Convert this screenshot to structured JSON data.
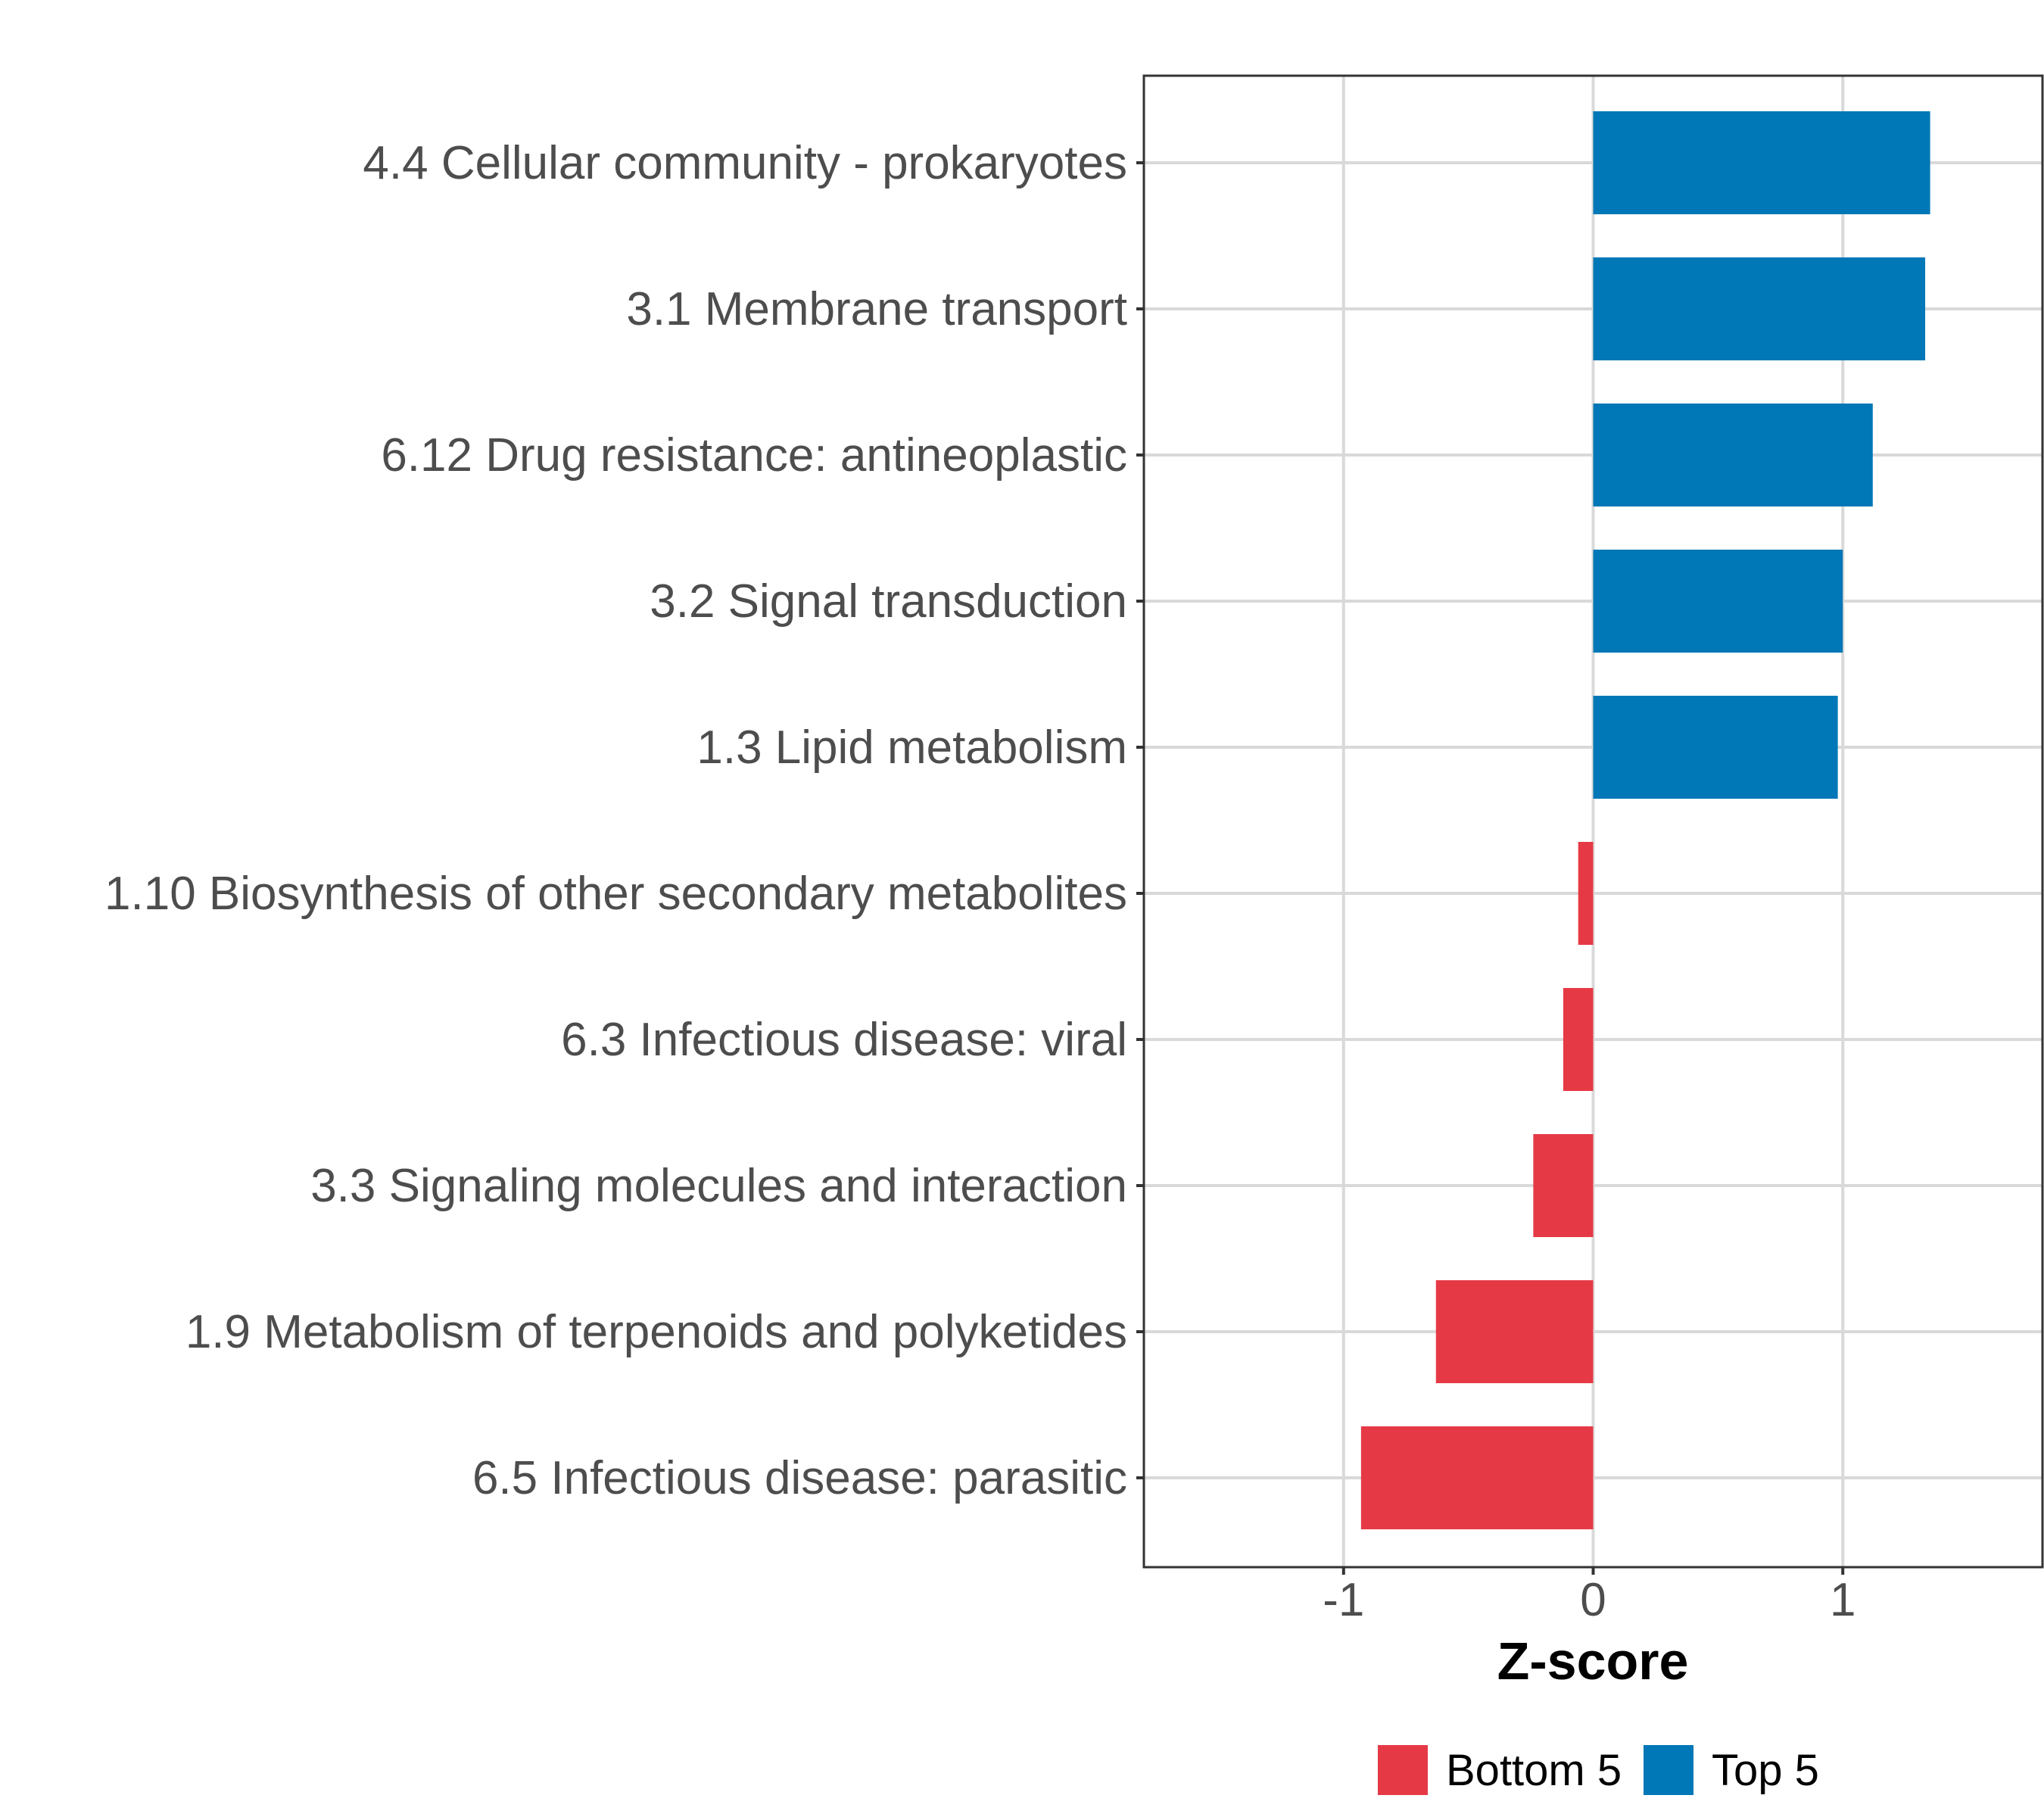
{
  "chart_data": {
    "type": "bar",
    "orientation": "horizontal",
    "categories": [
      "4.4 Cellular community - prokaryotes",
      "3.1 Membrane transport",
      "6.12 Drug resistance: antineoplastic",
      "3.2 Signal transduction",
      "1.3 Lipid metabolism",
      "1.10 Biosynthesis of other secondary metabolites",
      "6.3 Infectious disease: viral",
      "3.3 Signaling molecules and interaction",
      "1.9 Metabolism of terpenoids and polyketides",
      "6.5 Infectious disease: parasitic"
    ],
    "values": [
      1.35,
      1.33,
      1.12,
      1.0,
      0.98,
      -0.06,
      -0.12,
      -0.24,
      -0.63,
      -0.93
    ],
    "groups": [
      "Top 5",
      "Top 5",
      "Top 5",
      "Top 5",
      "Top 5",
      "Bottom 5",
      "Bottom 5",
      "Bottom 5",
      "Bottom 5",
      "Bottom 5"
    ],
    "xlim": [
      -1.8,
      1.8
    ],
    "xticks": [
      -1,
      0,
      1
    ],
    "xtick_labels": [
      "-1",
      "0",
      "1"
    ],
    "xlabel": "Z-score",
    "ylabel": "",
    "grid": true,
    "legend": {
      "position": "bottom",
      "entries": [
        {
          "label": "Bottom 5",
          "color": "#E63946"
        },
        {
          "label": "Top 5",
          "color": "#0077B6"
        }
      ]
    },
    "colors": {
      "Top 5": "#0077B6",
      "Bottom 5": "#E63946"
    }
  }
}
